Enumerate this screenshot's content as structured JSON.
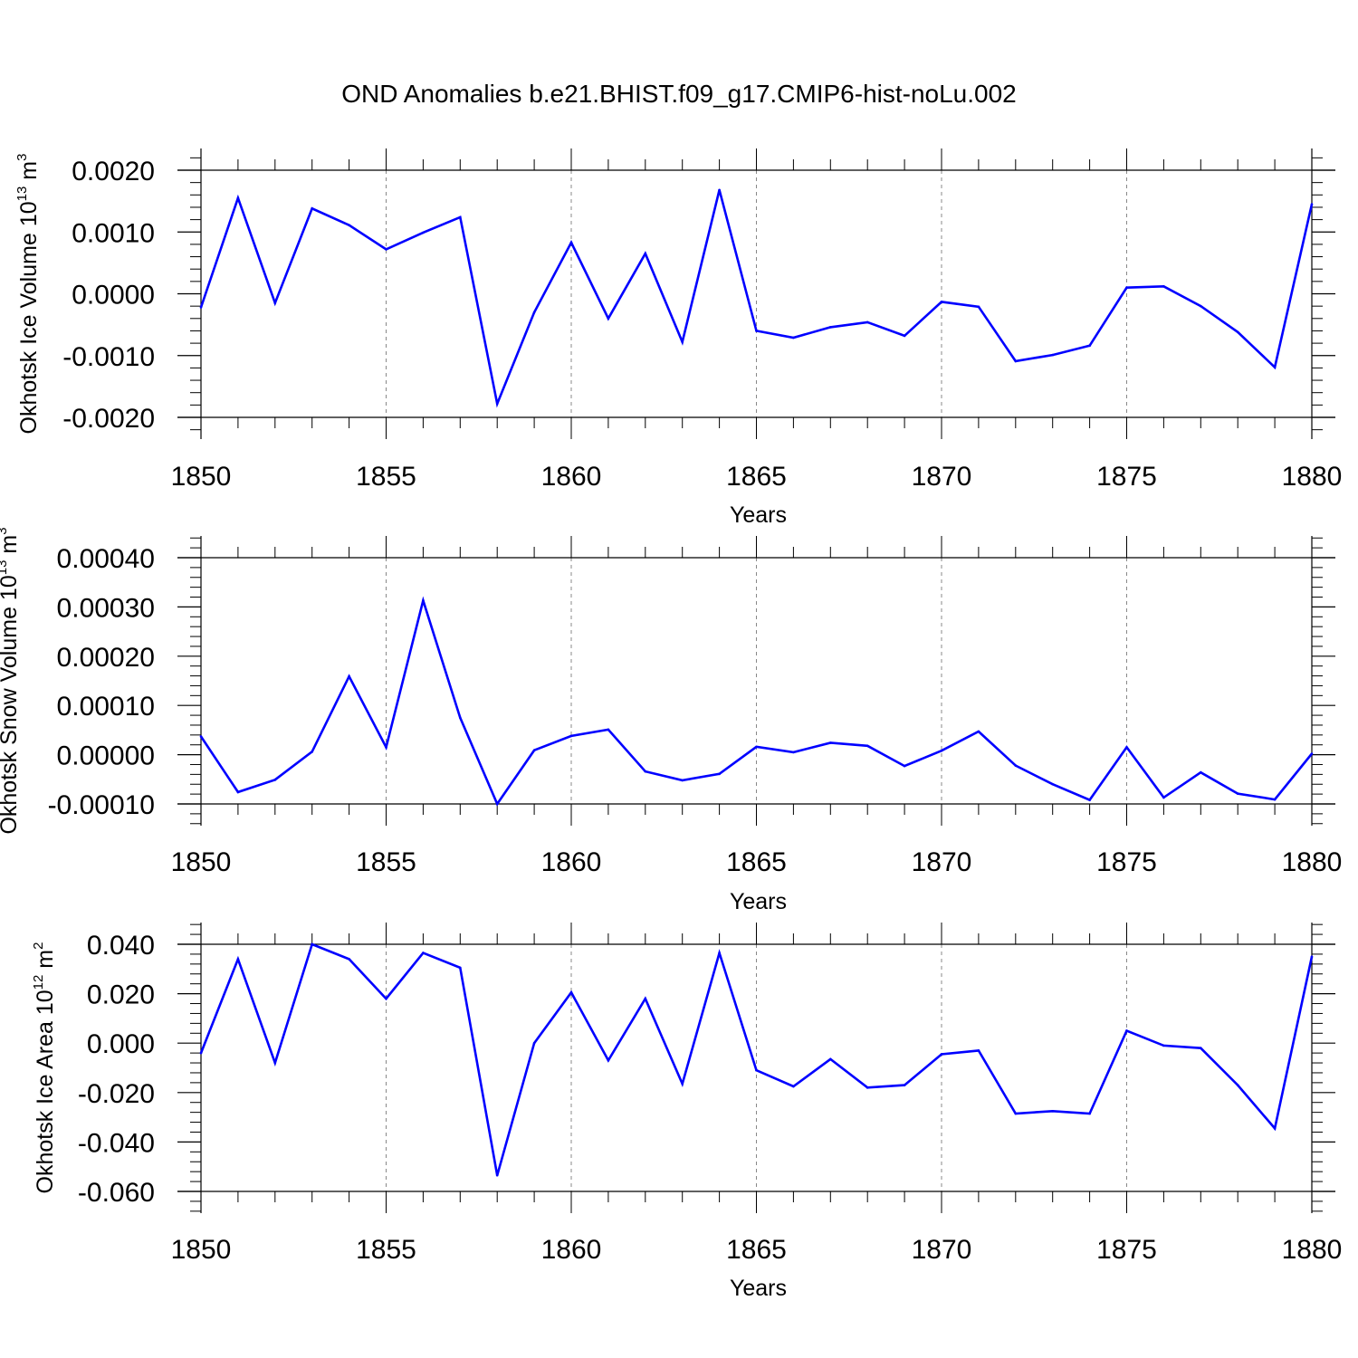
{
  "figure_title": "OND Anomalies b.e21.BHIST.f09_g17.CMIP6-hist-noLu.002",
  "colors": {
    "series": "#0000ff",
    "axis": "#000000",
    "grid": "#888888"
  },
  "chart_data": [
    {
      "type": "line",
      "ylabel": "Okhotsk Ice Volume 10",
      "ylabel_exp": "13",
      "ylabel_unit": " m",
      "ylabel_unit_exp": "3",
      "xlabel": "Years",
      "xlim": [
        1850,
        1880
      ],
      "ylim": [
        -0.002,
        0.002
      ],
      "grid": "vertical dashed at major x ticks",
      "x_ticks": [
        "1850",
        "1855",
        "1860",
        "1865",
        "1870",
        "1875",
        "1880"
      ],
      "y_ticks": [
        {
          "value": 0.002,
          "label": "0.0020"
        },
        {
          "value": 0.001,
          "label": "0.0010"
        },
        {
          "value": 0.0,
          "label": "0.0000"
        },
        {
          "value": -0.001,
          "label": "-0.0010"
        },
        {
          "value": -0.002,
          "label": "-0.0020"
        }
      ],
      "series": [
        {
          "name": "Okhotsk Ice Volume",
          "x": [
            1850,
            1851,
            1852,
            1853,
            1854,
            1855,
            1856,
            1857,
            1858,
            1859,
            1860,
            1861,
            1862,
            1863,
            1864,
            1865,
            1866,
            1867,
            1868,
            1869,
            1870,
            1871,
            1872,
            1873,
            1874,
            1875,
            1876,
            1877,
            1878,
            1879,
            1880
          ],
          "values": [
            -0.00022,
            0.00155,
            -0.00015,
            0.00138,
            0.00111,
            0.00072,
            0.00099,
            0.00124,
            -0.00178,
            -0.0003,
            0.00083,
            -0.0004,
            0.00065,
            -0.00078,
            0.00168,
            -0.0006,
            -0.00071,
            -0.00054,
            -0.00046,
            -0.00068,
            -0.00013,
            -0.00021,
            -0.00109,
            -0.00099,
            -0.00084,
            0.0001,
            0.00012,
            -0.0002,
            -0.00062,
            -0.00119,
            0.00145
          ]
        }
      ]
    },
    {
      "type": "line",
      "ylabel": "Okhotsk Snow Volume 10",
      "ylabel_exp": "13",
      "ylabel_unit": " m",
      "ylabel_unit_exp": "3",
      "xlabel": "Years",
      "xlim": [
        1850,
        1880
      ],
      "ylim": [
        -0.0001,
        0.0004
      ],
      "grid": "vertical dashed at major x ticks",
      "x_ticks": [
        "1850",
        "1855",
        "1860",
        "1865",
        "1870",
        "1875",
        "1880"
      ],
      "y_ticks": [
        {
          "value": 0.0004,
          "label": "0.00040"
        },
        {
          "value": 0.0003,
          "label": "0.00030"
        },
        {
          "value": 0.0002,
          "label": "0.00020"
        },
        {
          "value": 0.0001,
          "label": "0.00010"
        },
        {
          "value": 0.0,
          "label": "0.00000"
        },
        {
          "value": -0.0001,
          "label": "-0.00010"
        }
      ],
      "series": [
        {
          "name": "Okhotsk Snow Volume",
          "x": [
            1850,
            1851,
            1852,
            1853,
            1854,
            1855,
            1856,
            1857,
            1858,
            1859,
            1860,
            1861,
            1862,
            1863,
            1864,
            1865,
            1866,
            1867,
            1868,
            1869,
            1870,
            1871,
            1872,
            1873,
            1874,
            1875,
            1876,
            1877,
            1878,
            1879,
            1880
          ],
          "values": [
            3.7e-05,
            -7.6e-05,
            -5.1e-05,
            6e-06,
            0.000159,
            1.5e-05,
            0.000313,
            7.5e-05,
            -0.0001,
            9e-06,
            3.8e-05,
            5.1e-05,
            -3.4e-05,
            -5.2e-05,
            -3.9e-05,
            1.6e-05,
            5e-06,
            2.4e-05,
            1.8e-05,
            -2.3e-05,
            8e-06,
            4.7e-05,
            -2.2e-05,
            -6e-05,
            -9.2e-05,
            1.5e-05,
            -8.7e-05,
            -3.6e-05,
            -7.9e-05,
            -9.1e-05,
            2e-06
          ]
        }
      ]
    },
    {
      "type": "line",
      "ylabel": "Okhotsk Ice Area 10",
      "ylabel_exp": "12",
      "ylabel_unit": " m",
      "ylabel_unit_exp": "2",
      "xlabel": "Years",
      "xlim": [
        1850,
        1880
      ],
      "ylim": [
        -0.06,
        0.04
      ],
      "grid": "vertical dashed at major x ticks",
      "x_ticks": [
        "1850",
        "1855",
        "1860",
        "1865",
        "1870",
        "1875",
        "1880"
      ],
      "y_ticks": [
        {
          "value": 0.04,
          "label": "0.040"
        },
        {
          "value": 0.02,
          "label": "0.020"
        },
        {
          "value": 0.0,
          "label": "0.000"
        },
        {
          "value": -0.02,
          "label": "-0.020"
        },
        {
          "value": -0.04,
          "label": "-0.040"
        },
        {
          "value": -0.06,
          "label": "-0.060"
        }
      ],
      "series": [
        {
          "name": "Okhotsk Ice Area",
          "x": [
            1850,
            1851,
            1852,
            1853,
            1854,
            1855,
            1856,
            1857,
            1858,
            1859,
            1860,
            1861,
            1862,
            1863,
            1864,
            1865,
            1866,
            1867,
            1868,
            1869,
            1870,
            1871,
            1872,
            1873,
            1874,
            1875,
            1876,
            1877,
            1878,
            1879,
            1880
          ],
          "values": [
            -0.004,
            0.034,
            -0.008,
            0.04,
            0.034,
            0.018,
            0.0365,
            0.0305,
            -0.0535,
            0.0,
            0.0205,
            -0.007,
            0.018,
            -0.0165,
            0.0365,
            -0.011,
            -0.0175,
            -0.0065,
            -0.018,
            -0.017,
            -0.0045,
            -0.003,
            -0.0285,
            -0.0275,
            -0.0285,
            0.005,
            -0.001,
            -0.002,
            -0.017,
            -0.0345,
            0.035
          ]
        }
      ]
    }
  ]
}
